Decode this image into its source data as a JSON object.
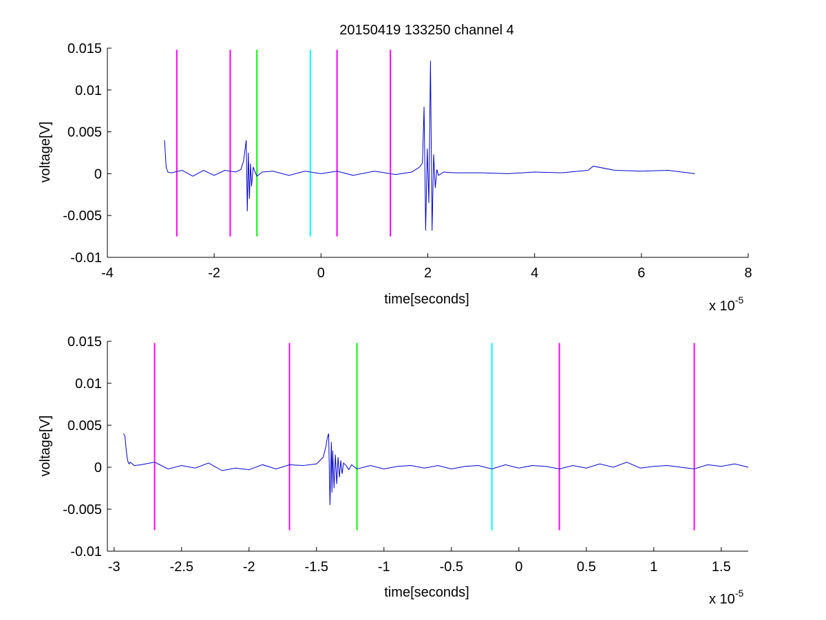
{
  "chart_data": [
    {
      "type": "line",
      "title": "20150419 133250 channel 4",
      "xlabel": "time[seconds]",
      "ylabel": "voltage[V]",
      "x_exponent_label": "x 10",
      "x_exponent": "-5",
      "xlim": [
        -4e-05,
        8e-05
      ],
      "ylim": [
        -0.01,
        0.015
      ],
      "xticks": [
        -4e-05,
        -2e-05,
        0,
        2e-05,
        4e-05,
        6e-05,
        8e-05
      ],
      "xtick_labels": [
        "-4",
        "-2",
        "0",
        "2",
        "4",
        "6",
        "8"
      ],
      "yticks": [
        -0.01,
        -0.005,
        0,
        0.005,
        0.01,
        0.015
      ],
      "ytick_labels": [
        "-0.01",
        "-0.005",
        "0",
        "0.005",
        "0.01",
        "0.015"
      ],
      "grid": false,
      "series": [
        {
          "color": "#0000cc",
          "x": [
            -2.93e-05,
            -2.92e-05,
            -2.9e-05,
            -2.87e-05,
            -2.8e-05,
            -2.6e-05,
            -2.4e-05,
            -2.2e-05,
            -2e-05,
            -1.8e-05,
            -1.6e-05,
            -1.5e-05,
            -1.45e-05,
            -1.42e-05,
            -1.4e-05,
            -1.38e-05,
            -1.36e-05,
            -1.34e-05,
            -1.32e-05,
            -1.3e-05,
            -1.27e-05,
            -1.24e-05,
            -1.2e-05,
            -1.1e-05,
            -9e-06,
            -6e-06,
            -3e-06,
            0,
            3e-06,
            6e-06,
            1e-05,
            1.4e-05,
            1.7e-05,
            1.85e-05,
            1.9e-05,
            1.93e-05,
            1.96e-05,
            1.99e-05,
            2.02e-05,
            2.05e-05,
            2.08e-05,
            2.11e-05,
            2.14e-05,
            2.17e-05,
            2.2e-05,
            2.3e-05,
            2.5e-05,
            3e-05,
            3.5e-05,
            4e-05,
            4.5e-05,
            5e-05,
            5.1e-05,
            5.5e-05,
            6e-05,
            6.5e-05,
            7e-05
          ],
          "y": [
            0.004,
            0.003,
            0.0008,
            0.0002,
            0.0001,
            0.0004,
            -0.0003,
            0.0004,
            -0.0002,
            0.0004,
            0.0002,
            0.0005,
            0.0015,
            0.003,
            0.004,
            -0.0045,
            0.0025,
            -0.003,
            0.0012,
            -0.0015,
            0.0008,
            0.0003,
            -0.0003,
            0.0002,
            0.0003,
            -0.0002,
            0.0003,
            0.0,
            0.0003,
            -0.0002,
            0.0003,
            -0.0001,
            0.0002,
            0.0008,
            0.0013,
            0.008,
            -0.0068,
            0.003,
            -0.0035,
            0.0135,
            -0.0068,
            0.0023,
            -0.0017,
            0.0005,
            -0.0002,
            0.0002,
            0.0001,
            0.0001,
            0.0,
            0.0002,
            0.0001,
            0.0004,
            0.0009,
            0.0004,
            0.0003,
            0.0004,
            0.0
          ]
        }
      ],
      "vlines": [
        {
          "x": -2.7e-05,
          "color": "#ff00ff",
          "ymin": -0.0075,
          "ymax": 0.0148
        },
        {
          "x": -1.7e-05,
          "color": "#ff00ff",
          "ymin": -0.0075,
          "ymax": 0.0148
        },
        {
          "x": -1.2e-05,
          "color": "#00ff00",
          "ymin": -0.0075,
          "ymax": 0.0148
        },
        {
          "x": -2e-06,
          "color": "#00ffff",
          "ymin": -0.0075,
          "ymax": 0.0148
        },
        {
          "x": 3e-06,
          "color": "#ff00ff",
          "ymin": -0.0075,
          "ymax": 0.0148
        },
        {
          "x": 1.3e-05,
          "color": "#ff00ff",
          "ymin": -0.0075,
          "ymax": 0.0148
        }
      ]
    },
    {
      "type": "line",
      "title": "",
      "xlabel": "time[seconds]",
      "ylabel": "voltage[V]",
      "x_exponent_label": "x 10",
      "x_exponent": "-5",
      "xlim": [
        -3.05e-05,
        1.7e-05
      ],
      "ylim": [
        -0.01,
        0.015
      ],
      "xticks": [
        -3e-05,
        -2.5e-05,
        -2e-05,
        -1.5e-05,
        -1e-05,
        -5e-06,
        0,
        5e-06,
        1e-05,
        1.5e-05
      ],
      "xtick_labels": [
        "-3",
        "-2.5",
        "-2",
        "-1.5",
        "-1",
        "-0.5",
        "0",
        "0.5",
        "1",
        "1.5"
      ],
      "yticks": [
        -0.01,
        -0.005,
        0,
        0.005,
        0.01,
        0.015
      ],
      "ytick_labels": [
        "-0.01",
        "-0.005",
        "0",
        "0.005",
        "0.01",
        "0.015"
      ],
      "grid": false,
      "series": [
        {
          "color": "#0000cc",
          "x": [
            -2.93e-05,
            -2.92e-05,
            -2.91e-05,
            -2.9e-05,
            -2.89e-05,
            -2.88e-05,
            -2.85e-05,
            -2.8e-05,
            -2.7e-05,
            -2.6e-05,
            -2.5e-05,
            -2.4e-05,
            -2.3e-05,
            -2.2e-05,
            -2.1e-05,
            -2e-05,
            -1.9e-05,
            -1.8e-05,
            -1.7e-05,
            -1.6e-05,
            -1.5e-05,
            -1.45e-05,
            -1.43e-05,
            -1.42e-05,
            -1.41e-05,
            -1.4e-05,
            -1.39e-05,
            -1.385e-05,
            -1.38e-05,
            -1.37e-05,
            -1.36e-05,
            -1.35e-05,
            -1.34e-05,
            -1.33e-05,
            -1.32e-05,
            -1.31e-05,
            -1.3e-05,
            -1.28e-05,
            -1.26e-05,
            -1.24e-05,
            -1.2e-05,
            -1.1e-05,
            -1e-05,
            -9e-06,
            -8e-06,
            -7e-06,
            -6e-06,
            -5e-06,
            -4e-06,
            -3e-06,
            -2e-06,
            -1e-06,
            0,
            1e-06,
            2e-06,
            3e-06,
            4e-06,
            5e-06,
            6e-06,
            7e-06,
            8e-06,
            9e-06,
            1e-05,
            1.1e-05,
            1.2e-05,
            1.3e-05,
            1.4e-05,
            1.5e-05,
            1.6e-05,
            1.7e-05
          ],
          "y": [
            0.004,
            0.0037,
            0.002,
            0.0008,
            0.0004,
            0.0006,
            0.0002,
            0.0003,
            0.0006,
            -0.0002,
            0.0002,
            -0.0001,
            0.0005,
            -0.0004,
            -0.0001,
            -0.0003,
            0.0003,
            -0.0002,
            0.0003,
            0.0002,
            0.0004,
            0.0012,
            0.0025,
            0.0035,
            0.004,
            -0.0045,
            0.003,
            -0.003,
            0.002,
            -0.0025,
            0.0015,
            -0.002,
            0.0012,
            -0.0012,
            0.0008,
            -0.0008,
            0.0005,
            0.0002,
            -0.0003,
            0.0003,
            -0.0002,
            0.0002,
            -0.0002,
            0.0001,
            0.0002,
            -0.0001,
            0.0002,
            -0.0002,
            0.0001,
            0.0002,
            -0.0002,
            0.0003,
            -0.0001,
            0.0002,
            0.0001,
            -0.0002,
            0.0002,
            -0.0001,
            0.0004,
            0.0,
            0.0006,
            -0.0001,
            0.0001,
            0.0002,
            0.0,
            -0.0002,
            0.0003,
            0.0001,
            0.0004,
            0.0
          ]
        }
      ],
      "vlines": [
        {
          "x": -2.7e-05,
          "color": "#ff00ff",
          "ymin": -0.0075,
          "ymax": 0.0148
        },
        {
          "x": -1.7e-05,
          "color": "#ff00ff",
          "ymin": -0.0075,
          "ymax": 0.0148
        },
        {
          "x": -1.2e-05,
          "color": "#00ff00",
          "ymin": -0.0075,
          "ymax": 0.0148
        },
        {
          "x": -2e-06,
          "color": "#00ffff",
          "ymin": -0.0075,
          "ymax": 0.0148
        },
        {
          "x": 3e-06,
          "color": "#ff00ff",
          "ymin": -0.0075,
          "ymax": 0.0148
        },
        {
          "x": 1.3e-05,
          "color": "#ff00ff",
          "ymin": -0.0075,
          "ymax": 0.0148
        }
      ]
    }
  ]
}
